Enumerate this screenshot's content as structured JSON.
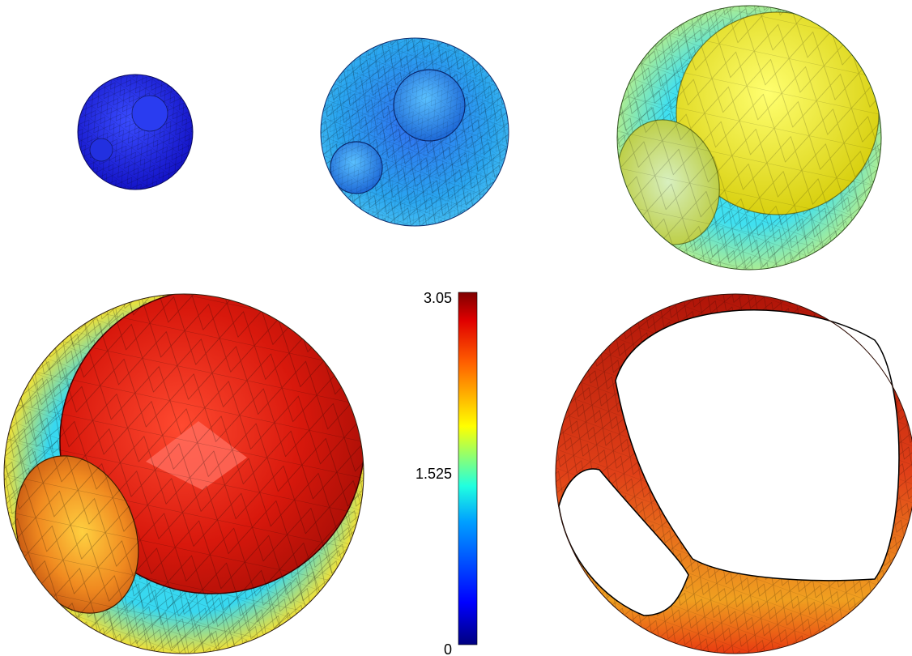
{
  "colorbar": {
    "max_label": "3.05",
    "mid_label": "1.525",
    "min_label": "0",
    "range": [
      0,
      3.05
    ],
    "colormap": [
      "#00007f",
      "#0000ff",
      "#0080ff",
      "#00ffff",
      "#80ff80",
      "#ffff00",
      "#ff8000",
      "#ff0000",
      "#7f0000"
    ]
  },
  "panels": [
    {
      "id": "frame-1",
      "dominant_color": "#1f2fd8"
    },
    {
      "id": "frame-2",
      "dominant_color": "#2a9ae8"
    },
    {
      "id": "frame-3",
      "dominant_color": "#e6e23a"
    },
    {
      "id": "frame-4",
      "dominant_color": "#c81a10"
    },
    {
      "id": "frame-5",
      "dominant_color": "#d83818"
    }
  ]
}
